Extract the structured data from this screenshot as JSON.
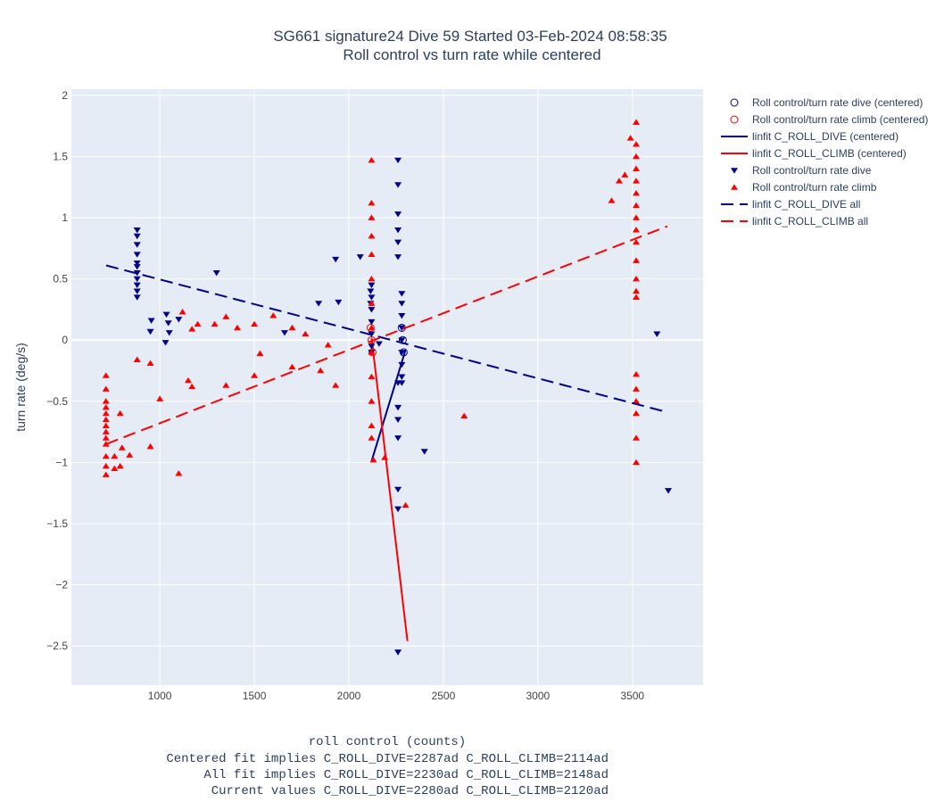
{
  "chart_data": {
    "type": "scatter",
    "title": "SG661 signature24 Dive 59 Started 03-Feb-2024 08:58:35",
    "subtitle": "Roll control vs turn rate while centered",
    "x_label": "roll control (counts)",
    "y_label": "turn rate (deg/s)",
    "notes": [
      "Centered fit implies C_ROLL_DIVE=2287ad C_ROLL_CLIMB=2114ad",
      "All fit implies C_ROLL_DIVE=2230ad C_ROLL_CLIMB=2148ad",
      "Current values C_ROLL_DIVE=2280ad C_ROLL_CLIMB=2120ad"
    ],
    "xlim": [
      532,
      3874
    ],
    "ylim": [
      -2.82,
      2.05
    ],
    "xticks": [
      1000,
      1500,
      2000,
      2500,
      3000,
      3500
    ],
    "yticks": [
      {
        "value": -2.5,
        "label": "−2.5"
      },
      {
        "value": -2,
        "label": "−2"
      },
      {
        "value": -1.5,
        "label": "−1.5"
      },
      {
        "value": -1,
        "label": "−1"
      },
      {
        "value": -0.5,
        "label": "−0.5"
      },
      0,
      0.5,
      1,
      1.5,
      2
    ],
    "grid": true,
    "series": [
      {
        "name": "Roll control/turn rate dive (centered)",
        "color": "#00008b",
        "mode": "markers",
        "symbol": "circle-open",
        "x": [
          2280,
          2285,
          2290
        ],
        "values": [
          0.1,
          0.0,
          -0.1
        ]
      },
      {
        "name": "Roll control/turn rate climb (centered)",
        "color": "#ff0000",
        "mode": "markers",
        "symbol": "circle-open",
        "x": [
          2115,
          2120,
          2125
        ],
        "values": [
          0.1,
          0.0,
          -0.1
        ]
      },
      {
        "name": "linfit C_ROLL_DIVE (centered)",
        "color": "#00008b",
        "mode": "line",
        "dash": "solid",
        "x": [
          2120,
          2300
        ],
        "values": [
          -0.99,
          -0.08
        ]
      },
      {
        "name": "linfit C_ROLL_CLIMB (centered)",
        "color": "#ff0000",
        "mode": "line",
        "dash": "solid",
        "x": [
          2120,
          2310
        ],
        "values": [
          0.02,
          -2.46
        ]
      },
      {
        "name": "Roll control/turn rate dive",
        "color": "#00008b",
        "mode": "markers",
        "symbol": "triangle-down",
        "x": [
          880,
          880,
          880,
          880,
          880,
          880,
          880,
          880,
          880,
          880,
          880,
          955,
          950,
          1035,
          1045,
          1050,
          1030,
          1100,
          1300,
          1660,
          1840,
          1930,
          1945,
          2060,
          2120,
          2120,
          2120,
          2120,
          2120,
          2120,
          2120,
          2115,
          2115,
          2160,
          2260,
          2260,
          2260,
          2260,
          2260,
          2260,
          2260,
          2260,
          2260,
          2280,
          2280,
          2280,
          2280,
          2280,
          2280,
          2280,
          2280,
          2280,
          2260,
          2260,
          2260,
          2260,
          2400,
          3630,
          3690
        ],
        "values": [
          0.9,
          0.85,
          0.78,
          0.7,
          0.63,
          0.6,
          0.55,
          0.5,
          0.45,
          0.4,
          0.35,
          0.16,
          0.07,
          0.21,
          0.14,
          0.06,
          -0.02,
          0.17,
          0.55,
          0.06,
          0.3,
          0.66,
          0.31,
          0.68,
          0.45,
          0.35,
          0.25,
          0.15,
          0.05,
          -0.05,
          -0.1,
          0.4,
          0.3,
          -0.03,
          1.47,
          1.27,
          1.03,
          0.9,
          0.8,
          0.68,
          -1.22,
          -1.38,
          -2.55,
          0.38,
          0.3,
          0.2,
          0.1,
          0,
          -0.1,
          -0.2,
          -0.3,
          -0.35,
          -0.35,
          -0.55,
          -0.65,
          -0.8,
          -0.91,
          0.05,
          -1.23
        ]
      },
      {
        "name": "Roll control/turn rate climb",
        "color": "#ff0000",
        "mode": "markers",
        "symbol": "triangle-up",
        "x": [
          715,
          715,
          715,
          715,
          715,
          715,
          715,
          715,
          715,
          715,
          715,
          715,
          715,
          760,
          760,
          790,
          790,
          800,
          840,
          880,
          950,
          950,
          1000,
          1100,
          1120,
          1150,
          1170,
          1170,
          1200,
          1290,
          1350,
          1350,
          1410,
          1500,
          1500,
          1530,
          1600,
          1700,
          1700,
          1770,
          1850,
          1890,
          1930,
          2120,
          2120,
          2120,
          2120,
          2120,
          2120,
          2120,
          2120,
          2120,
          2120,
          2120,
          2120,
          2120,
          2130,
          2190,
          2300,
          2610,
          3390,
          3430,
          3460,
          3490,
          3520,
          3520,
          3520,
          3520,
          3520,
          3520,
          3520,
          3520,
          3520,
          3520,
          3520,
          3520,
          3520,
          3520,
          3520,
          3520,
          3520,
          3520,
          3520,
          3520
        ],
        "values": [
          -0.29,
          -0.4,
          -0.5,
          -0.55,
          -0.6,
          -0.65,
          -0.7,
          -0.75,
          -0.8,
          -0.85,
          -0.95,
          -1.03,
          -1.1,
          -0.95,
          -1.05,
          -0.6,
          -1.03,
          -0.88,
          -0.94,
          -0.16,
          -0.19,
          -0.87,
          -0.48,
          -1.09,
          0.23,
          -0.33,
          -0.38,
          0.09,
          0.13,
          0.13,
          0.19,
          -0.37,
          0.1,
          0.13,
          -0.29,
          -0.11,
          0.2,
          0.1,
          -0.22,
          0.05,
          -0.25,
          -0.04,
          -0.37,
          1.47,
          1.12,
          1.0,
          0.85,
          0.7,
          0.5,
          0.3,
          0.1,
          -0.1,
          -0.3,
          -0.5,
          -0.7,
          -0.8,
          -0.98,
          -0.96,
          -1.35,
          -0.62,
          1.14,
          1.3,
          1.35,
          1.65,
          1.78,
          1.6,
          1.5,
          1.4,
          1.3,
          1.2,
          1.1,
          1.0,
          0.9,
          0.8,
          0.65,
          0.5,
          0.4,
          0.35,
          -0.28,
          -0.4,
          -0.5,
          -0.6,
          -0.8,
          -1.0
        ]
      },
      {
        "name": "linfit C_ROLL_DIVE all",
        "color": "#00008b",
        "mode": "line",
        "dash": "dash",
        "x": [
          716,
          3661
        ],
        "values": [
          0.61,
          -0.58
        ]
      },
      {
        "name": "linfit C_ROLL_CLIMB all",
        "color": "#ff0000",
        "mode": "line",
        "dash": "dash",
        "x": [
          716,
          3685
        ],
        "values": [
          -0.85,
          0.93
        ]
      }
    ]
  }
}
